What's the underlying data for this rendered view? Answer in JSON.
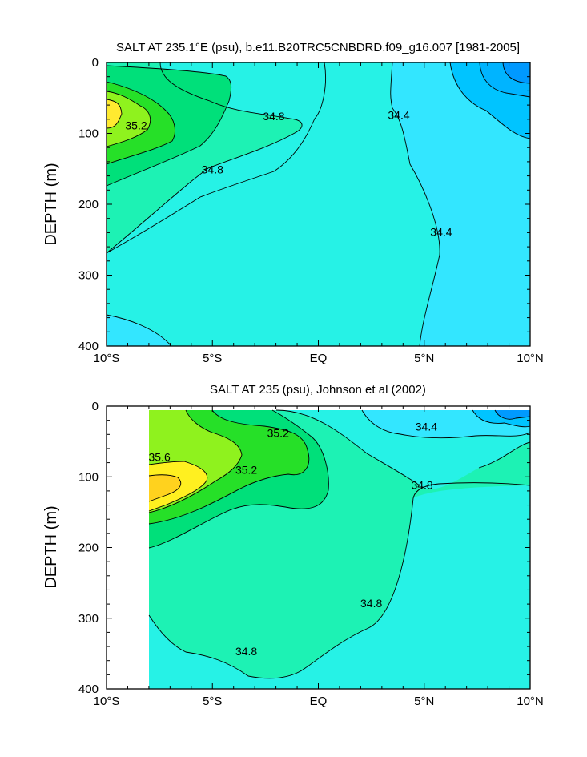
{
  "chart_data": [
    {
      "type": "contour",
      "title": "SALT AT 235.1°E (psu), b.e11.B20TRC5CNBDRD.f09_g16.007 [1981-2005]",
      "ylabel": "DEPTH (m)",
      "xlabel": "",
      "x_ticks": [
        "10°S",
        "5°S",
        "EQ",
        "5°N",
        "10°N"
      ],
      "x_tick_values": [
        -10,
        -5,
        0,
        5,
        10
      ],
      "y_ticks": [
        "0",
        "100",
        "200",
        "300",
        "400"
      ],
      "y_tick_values": [
        0,
        100,
        200,
        300,
        400
      ],
      "xlim": [
        -10,
        10
      ],
      "ylim": [
        400,
        0
      ],
      "contour_labels": [
        {
          "text": "35.2",
          "lat": -8.6,
          "depth": 90
        },
        {
          "text": "34.8",
          "lat": -2.1,
          "depth": 77
        },
        {
          "text": "34.8",
          "lat": -5.0,
          "depth": 152
        },
        {
          "text": "34.4",
          "lat": 3.8,
          "depth": 75
        },
        {
          "text": "34.4",
          "lat": 5.8,
          "depth": 240
        }
      ],
      "colors": {
        "s34_0": "#0099ff",
        "s34_2": "#00c4ff",
        "s34_4": "#33e6ff",
        "s34_6": "#26f2e6",
        "s34_8": "#1df2b4",
        "s35_0": "#00e07a",
        "s35_2": "#26e028",
        "s35_4": "#8ff21e",
        "s35_6": "#fff020",
        "s35_8": "#ffd21e"
      }
    },
    {
      "type": "contour",
      "title": "SALT AT 235 (psu), Johnson et al (2002)",
      "ylabel": "DEPTH (m)",
      "xlabel": "",
      "x_ticks": [
        "10°S",
        "5°S",
        "EQ",
        "5°N",
        "10°N"
      ],
      "x_tick_values": [
        -10,
        -5,
        0,
        5,
        10
      ],
      "y_ticks": [
        "0",
        "100",
        "200",
        "300",
        "400"
      ],
      "y_tick_values": [
        0,
        100,
        200,
        300,
        400
      ],
      "xlim": [
        -10,
        10
      ],
      "ylim": [
        400,
        0
      ],
      "data_extent_lat": [
        -8,
        10
      ],
      "contour_labels": [
        {
          "text": "35.6",
          "lat": -7.5,
          "depth": 73
        },
        {
          "text": "35.2",
          "lat": -1.9,
          "depth": 39
        },
        {
          "text": "35.2",
          "lat": -3.4,
          "depth": 91
        },
        {
          "text": "34.4",
          "lat": 5.1,
          "depth": 30
        },
        {
          "text": "34.8",
          "lat": 4.9,
          "depth": 113
        },
        {
          "text": "34.8",
          "lat": 2.5,
          "depth": 280
        },
        {
          "text": "34.8",
          "lat": -3.4,
          "depth": 348
        }
      ],
      "colors": {
        "s34_0": "#0099ff",
        "s34_2": "#00c4ff",
        "s34_4": "#33e6ff",
        "s34_6": "#26f2e6",
        "s34_8": "#1df2b4",
        "s35_0": "#00e07a",
        "s35_2": "#26e028",
        "s35_4": "#8ff21e",
        "s35_6": "#fff020",
        "s35_8": "#ffd21e"
      }
    }
  ]
}
